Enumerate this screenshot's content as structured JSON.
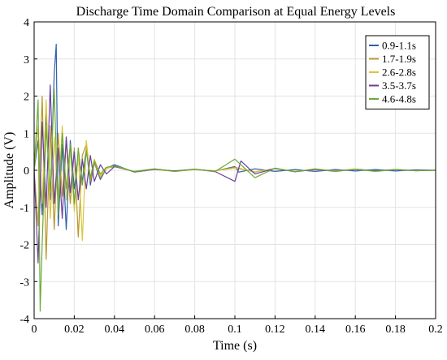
{
  "chart_data": {
    "type": "line",
    "title": "Discharge Time Domain Comparison at Equal Energy Levels",
    "xlabel": "Time (s)",
    "ylabel": "Amplitude (V)",
    "xlim": [
      0,
      0.2
    ],
    "ylim": [
      -4,
      4
    ],
    "xticks": [
      0,
      0.02,
      0.04,
      0.06,
      0.08,
      0.1,
      0.12,
      0.14,
      0.16,
      0.18,
      0.2
    ],
    "xtick_labels": [
      "0",
      "0.02",
      "0.04",
      "0.06",
      "0.08",
      "0.1",
      "0.12",
      "0.14",
      "0.16",
      "0.18",
      "0.2"
    ],
    "yticks": [
      -4,
      -3,
      -2,
      -1,
      0,
      1,
      2,
      3,
      4
    ],
    "ytick_labels": [
      "-4",
      "-3",
      "-2",
      "-1",
      "0",
      "1",
      "2",
      "3",
      "4"
    ],
    "grid": true,
    "legend_position": "top-right",
    "series": [
      {
        "name": "0.9-1.1s",
        "color": "#2f5fa8",
        "x": [
          0,
          0.002,
          0.004,
          0.006,
          0.008,
          0.01,
          0.011,
          0.012,
          0.014,
          0.016,
          0.018,
          0.02,
          0.022,
          0.024,
          0.026,
          0.028,
          0.03,
          0.033,
          0.036,
          0.04,
          0.045,
          0.05,
          0.06,
          0.07,
          0.08,
          0.09,
          0.1,
          0.102,
          0.11,
          0.12,
          0.13,
          0.14,
          0.15,
          0.16,
          0.17,
          0.18,
          0.19,
          0.2
        ],
        "y": [
          0,
          0.8,
          -1.2,
          1.5,
          -0.8,
          2.6,
          3.4,
          -1.5,
          0.7,
          -1.6,
          0.8,
          -0.5,
          0.4,
          -0.3,
          0.6,
          -0.4,
          0.2,
          -0.25,
          0.05,
          0.15,
          0.05,
          -0.05,
          0.02,
          -0.02,
          0.02,
          -0.02,
          0.1,
          -0.05,
          0.04,
          -0.03,
          0.02,
          -0.03,
          0.02,
          -0.02,
          0.02,
          -0.02,
          0.01,
          0
        ]
      },
      {
        "name": "1.7-1.9s",
        "color": "#b9962a",
        "x": [
          0,
          0.002,
          0.004,
          0.006,
          0.008,
          0.01,
          0.012,
          0.014,
          0.016,
          0.018,
          0.02,
          0.022,
          0.024,
          0.026,
          0.028,
          0.03,
          0.033,
          0.036,
          0.04,
          0.045,
          0.05,
          0.06,
          0.07,
          0.08,
          0.09,
          0.1,
          0.11,
          0.12,
          0.13,
          0.14,
          0.15,
          0.16,
          0.17,
          0.18,
          0.19,
          0.2
        ],
        "y": [
          0,
          -1.5,
          2.0,
          -2.4,
          1.2,
          -1.6,
          1.0,
          -0.7,
          0.8,
          -0.9,
          0.6,
          -1.8,
          0.4,
          0.7,
          -0.3,
          0.2,
          -0.2,
          0.05,
          0.1,
          0.05,
          -0.05,
          0.03,
          -0.03,
          0.02,
          -0.02,
          0.08,
          -0.05,
          0.05,
          -0.04,
          0.02,
          -0.02,
          0.03,
          -0.02,
          0.02,
          -0.01,
          0
        ]
      },
      {
        "name": "2.6-2.8s",
        "color": "#d9c63a",
        "x": [
          0,
          0.002,
          0.004,
          0.006,
          0.008,
          0.01,
          0.012,
          0.014,
          0.016,
          0.018,
          0.02,
          0.022,
          0.024,
          0.026,
          0.028,
          0.03,
          0.033,
          0.036,
          0.04,
          0.045,
          0.05,
          0.06,
          0.07,
          0.08,
          0.09,
          0.1,
          0.11,
          0.12,
          0.13,
          0.14,
          0.15,
          0.16,
          0.17,
          0.18,
          0.19,
          0.2
        ],
        "y": [
          0,
          1.2,
          -0.9,
          1.9,
          -1.3,
          0.9,
          -1.0,
          1.2,
          -0.8,
          0.6,
          -1.1,
          0.5,
          -1.9,
          0.8,
          -0.2,
          0.3,
          -0.15,
          0.05,
          0.12,
          0.04,
          -0.04,
          0.02,
          -0.03,
          0.02,
          -0.02,
          0.06,
          -0.04,
          0.04,
          -0.03,
          0.03,
          -0.02,
          0.02,
          -0.02,
          0.02,
          -0.01,
          0
        ]
      },
      {
        "name": "3.5-3.7s",
        "color": "#6b3f9e",
        "x": [
          0,
          0.002,
          0.004,
          0.006,
          0.008,
          0.01,
          0.012,
          0.014,
          0.016,
          0.018,
          0.02,
          0.022,
          0.024,
          0.026,
          0.028,
          0.03,
          0.033,
          0.036,
          0.04,
          0.045,
          0.05,
          0.06,
          0.07,
          0.08,
          0.09,
          0.1,
          0.103,
          0.11,
          0.12,
          0.13,
          0.14,
          0.15,
          0.16,
          0.17,
          0.18,
          0.19,
          0.2
        ],
        "y": [
          0,
          -2.5,
          1.3,
          -1.0,
          2.3,
          -0.9,
          0.6,
          -1.3,
          0.9,
          -0.6,
          0.5,
          -0.8,
          0.3,
          -0.5,
          0.4,
          -0.3,
          0.15,
          -0.1,
          0.1,
          0.03,
          -0.04,
          0.03,
          -0.02,
          0.03,
          -0.03,
          -0.3,
          0.25,
          -0.1,
          0.05,
          -0.04,
          0.03,
          -0.03,
          0.03,
          -0.02,
          0.02,
          -0.01,
          0
        ]
      },
      {
        "name": "4.6-4.8s",
        "color": "#6aaa3a",
        "x": [
          0,
          0.002,
          0.003,
          0.004,
          0.006,
          0.008,
          0.01,
          0.012,
          0.014,
          0.016,
          0.018,
          0.02,
          0.022,
          0.024,
          0.026,
          0.028,
          0.03,
          0.033,
          0.036,
          0.04,
          0.045,
          0.05,
          0.06,
          0.07,
          0.08,
          0.09,
          0.1,
          0.11,
          0.12,
          0.13,
          0.14,
          0.15,
          0.16,
          0.17,
          0.18,
          0.19,
          0.2
        ],
        "y": [
          0,
          1.9,
          -3.8,
          -2.0,
          1.2,
          -0.6,
          2.2,
          -1.2,
          1.0,
          -0.5,
          0.7,
          -0.9,
          0.6,
          -0.4,
          0.5,
          -0.2,
          0.25,
          -0.1,
          0.08,
          0.12,
          0.03,
          -0.03,
          0.04,
          -0.03,
          0.03,
          -0.04,
          0.3,
          -0.2,
          0.06,
          -0.04,
          0.04,
          -0.03,
          0.03,
          -0.03,
          0.02,
          -0.01,
          0
        ]
      }
    ]
  }
}
